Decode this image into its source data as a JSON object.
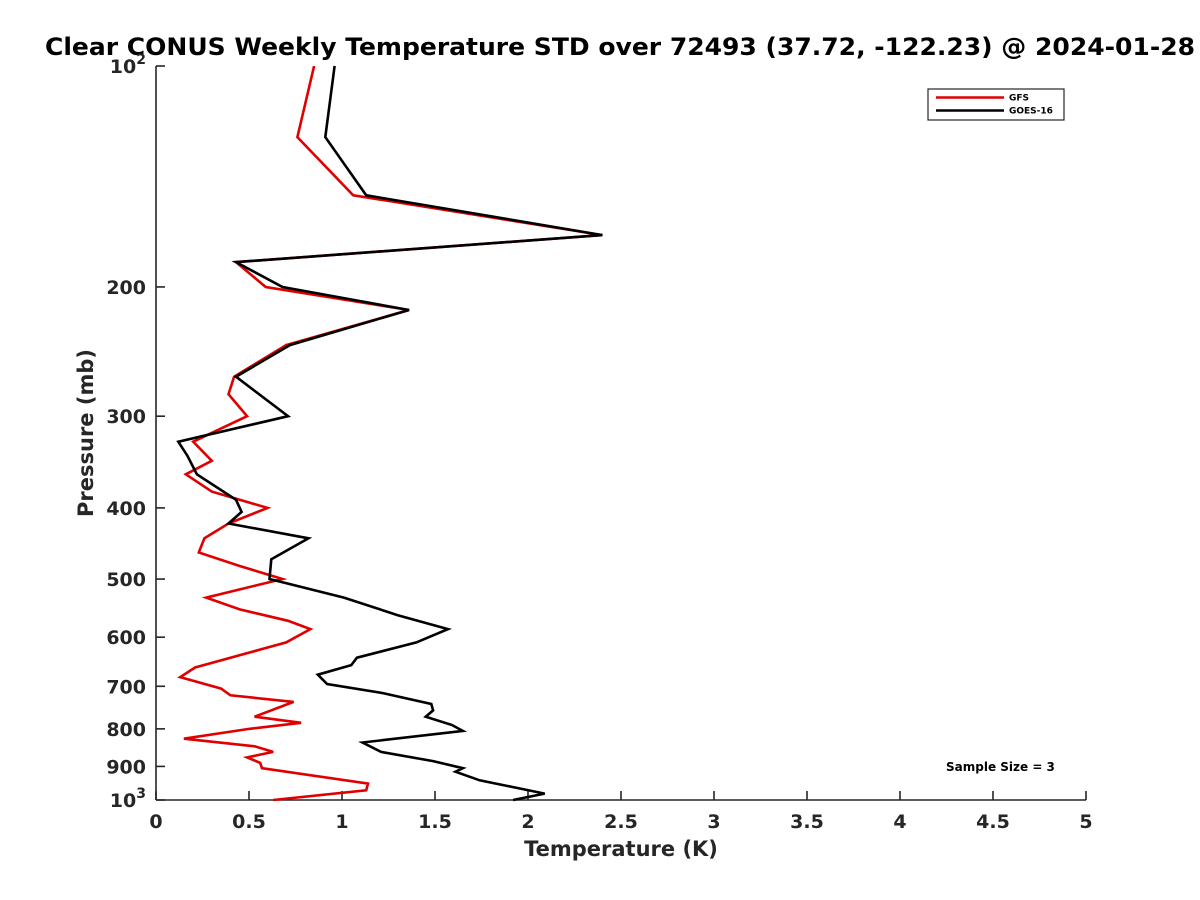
{
  "chart_data": {
    "type": "line",
    "title": "Clear CONUS Weekly Temperature STD over 72493 (37.72, -122.23) @ 2024-01-28",
    "xlabel": "Temperature (K)",
    "ylabel": "Pressure (mb)",
    "xlim": [
      0,
      5
    ],
    "ylim": [
      1000,
      100
    ],
    "yscale": "log",
    "y_reversed": true,
    "xticks": [
      "0",
      "0.5",
      "1",
      "1.5",
      "2",
      "2.5",
      "3",
      "3.5",
      "4",
      "4.5",
      "5"
    ],
    "yticks": [
      {
        "value": 100,
        "base": "10",
        "exp": "2"
      },
      {
        "value": 200,
        "label": "200"
      },
      {
        "value": 300,
        "label": "300"
      },
      {
        "value": 400,
        "label": "400"
      },
      {
        "value": 500,
        "label": "500"
      },
      {
        "value": 600,
        "label": "600"
      },
      {
        "value": 700,
        "label": "700"
      },
      {
        "value": 800,
        "label": "800"
      },
      {
        "value": 900,
        "label": "900"
      },
      {
        "value": 1000,
        "base": "10",
        "exp": "3"
      }
    ],
    "grid": false,
    "legend_position": "top-right",
    "annotation": "Sample Size = 3",
    "series": [
      {
        "name": "GFS",
        "color": "#e00000",
        "points": [
          [
            0.85,
            100
          ],
          [
            0.76,
            125
          ],
          [
            1.06,
            150
          ],
          [
            2.4,
            170
          ],
          [
            0.43,
            185
          ],
          [
            0.59,
            200
          ],
          [
            1.36,
            215
          ],
          [
            0.7,
            240
          ],
          [
            0.42,
            265
          ],
          [
            0.39,
            280
          ],
          [
            0.49,
            300
          ],
          [
            0.2,
            325
          ],
          [
            0.3,
            345
          ],
          [
            0.16,
            360
          ],
          [
            0.3,
            380
          ],
          [
            0.6,
            400
          ],
          [
            0.39,
            420
          ],
          [
            0.26,
            440
          ],
          [
            0.23,
            460
          ],
          [
            0.45,
            480
          ],
          [
            0.68,
            500
          ],
          [
            0.27,
            530
          ],
          [
            0.45,
            550
          ],
          [
            0.71,
            570
          ],
          [
            0.83,
            585
          ],
          [
            0.7,
            610
          ],
          [
            0.21,
            660
          ],
          [
            0.13,
            680
          ],
          [
            0.35,
            705
          ],
          [
            0.4,
            720
          ],
          [
            0.74,
            735
          ],
          [
            0.53,
            770
          ],
          [
            0.78,
            785
          ],
          [
            0.5,
            800
          ],
          [
            0.15,
            825
          ],
          [
            0.53,
            845
          ],
          [
            0.63,
            860
          ],
          [
            0.49,
            875
          ],
          [
            0.56,
            890
          ],
          [
            0.57,
            905
          ],
          [
            1.14,
            950
          ],
          [
            1.13,
            970
          ],
          [
            0.63,
            1000
          ]
        ]
      },
      {
        "name": "GOES-16",
        "color": "#000000",
        "points": [
          [
            0.96,
            100
          ],
          [
            0.91,
            125
          ],
          [
            1.13,
            150
          ],
          [
            2.4,
            170
          ],
          [
            0.43,
            185
          ],
          [
            0.68,
            200
          ],
          [
            1.36,
            215
          ],
          [
            0.72,
            240
          ],
          [
            0.43,
            265
          ],
          [
            0.71,
            300
          ],
          [
            0.12,
            325
          ],
          [
            0.17,
            340
          ],
          [
            0.22,
            360
          ],
          [
            0.43,
            390
          ],
          [
            0.46,
            405
          ],
          [
            0.39,
            420
          ],
          [
            0.82,
            440
          ],
          [
            0.62,
            470
          ],
          [
            0.61,
            500
          ],
          [
            1.01,
            530
          ],
          [
            1.3,
            560
          ],
          [
            1.57,
            585
          ],
          [
            1.4,
            610
          ],
          [
            1.08,
            640
          ],
          [
            1.05,
            655
          ],
          [
            0.87,
            675
          ],
          [
            0.92,
            695
          ],
          [
            1.22,
            715
          ],
          [
            1.48,
            740
          ],
          [
            1.49,
            755
          ],
          [
            1.45,
            770
          ],
          [
            1.59,
            790
          ],
          [
            1.65,
            805
          ],
          [
            1.11,
            835
          ],
          [
            1.21,
            860
          ],
          [
            1.49,
            885
          ],
          [
            1.65,
            905
          ],
          [
            1.61,
            915
          ],
          [
            1.74,
            940
          ],
          [
            2.09,
            980
          ],
          [
            1.92,
            1000
          ]
        ]
      }
    ]
  }
}
